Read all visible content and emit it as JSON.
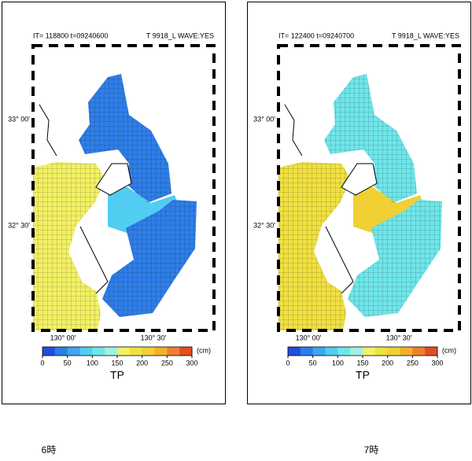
{
  "panels": [
    {
      "header_left": "IT=  118800   t=09240600",
      "header_right": "T 9918_L   WAVE:YES",
      "lat_labels": [
        "33° 00'",
        "32° 30'"
      ],
      "lon_labels": [
        "130° 00'",
        "130° 30'"
      ],
      "unit": "(cm)",
      "variable": "TP",
      "caption": "6時"
    },
    {
      "header_left": "IT=  122400   t=09240700",
      "header_right": "T 9918_L   WAVE:YES",
      "lat_labels": [
        "33° 00'",
        "32° 30'"
      ],
      "lon_labels": [
        "130° 00'",
        "130° 30'"
      ],
      "unit": "(cm)",
      "variable": "TP",
      "caption": "7時"
    }
  ],
  "colorbar": {
    "range": [
      0,
      300
    ],
    "ticks": [
      0,
      50,
      100,
      150,
      200,
      250,
      300
    ],
    "colors": [
      "#1f50d8",
      "#2f7ee8",
      "#3fa6f0",
      "#52cdf2",
      "#6fe6ea",
      "#a2efe6",
      "#f2f064",
      "#f0e042",
      "#f0d032",
      "#f0b030",
      "#f08030",
      "#e05020"
    ]
  }
}
